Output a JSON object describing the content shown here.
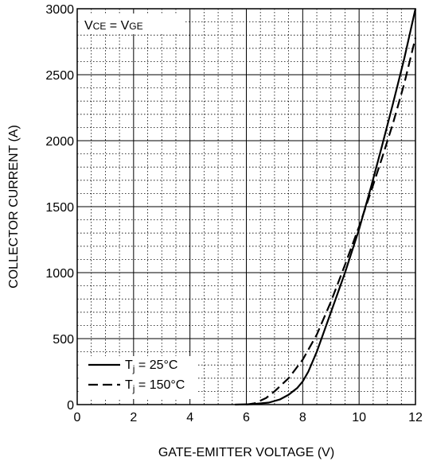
{
  "chart_data": {
    "type": "line",
    "xlabel": "GATE-EMITTER VOLTAGE (V)",
    "ylabel": "COLLECTOR CURRENT (A)",
    "xlim": [
      0,
      12
    ],
    "ylim": [
      0,
      3000
    ],
    "x_ticks": [
      "0",
      "2",
      "4",
      "6",
      "8",
      "10",
      "12"
    ],
    "y_ticks": [
      "0",
      "500",
      "1000",
      "1500",
      "2000",
      "2500",
      "3000"
    ],
    "grid": "dotted minor grid with solid major grid",
    "annotation": {
      "parts": [
        {
          "text": "V",
          "sub": false
        },
        {
          "text": "CE",
          "sub": true
        },
        {
          "text": " = V",
          "sub": false
        },
        {
          "text": "GE",
          "sub": true
        }
      ]
    },
    "legend": {
      "placement": "bottom-left",
      "entries": [
        {
          "pre": "T",
          "sub": "j",
          "post": " = 25°C",
          "style": "solid"
        },
        {
          "pre": "T",
          "sub": "j",
          "post": " = 150°C",
          "style": "dashed"
        }
      ]
    },
    "series": [
      {
        "label": "Tj = 25°C",
        "style": "solid",
        "x": [
          5.6,
          6.2,
          6.8,
          7.2,
          7.5,
          7.8,
          8.0,
          8.2,
          8.5,
          9.0,
          9.5,
          10.0,
          10.4,
          10.8,
          11.2,
          11.6,
          12.0
        ],
        "y": [
          0,
          3,
          15,
          40,
          75,
          125,
          175,
          250,
          400,
          700,
          1000,
          1330,
          1630,
          1950,
          2280,
          2620,
          3000
        ]
      },
      {
        "label": "Tj = 150°C",
        "style": "dashed",
        "x": [
          6.0,
          6.3,
          6.7,
          7.0,
          7.5,
          8.0,
          8.5,
          9.0,
          9.5,
          10.0,
          10.4,
          10.8,
          11.2,
          11.6,
          12.0
        ],
        "y": [
          0,
          10,
          50,
          100,
          200,
          340,
          530,
          780,
          1060,
          1350,
          1600,
          1860,
          2130,
          2430,
          2780
        ]
      }
    ]
  }
}
